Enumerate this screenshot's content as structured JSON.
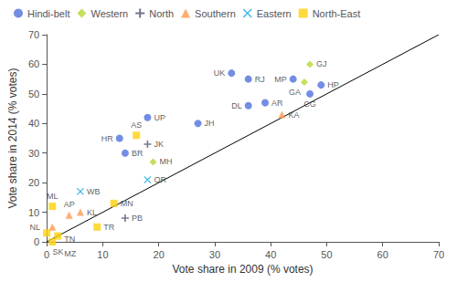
{
  "chart_data": {
    "type": "scatter",
    "xlabel": "Vote share in 2009 (% votes)",
    "ylabel": "Vote share in 2014 (% votes)",
    "xlim": [
      0,
      70
    ],
    "ylim": [
      0,
      70
    ],
    "xticks": [
      0,
      10,
      20,
      30,
      40,
      50,
      60,
      70
    ],
    "yticks": [
      0,
      10,
      20,
      30,
      40,
      50,
      60,
      70
    ],
    "grid": false,
    "legend": "upper left",
    "series": [
      {
        "type": "line",
        "color": "#000000",
        "x": [
          0,
          70
        ],
        "y": [
          0,
          70
        ]
      },
      {
        "name": "Hindi-belt",
        "marker": "circle",
        "labels": [
          "UK",
          "RJ",
          "MP",
          "HP",
          "CG",
          "AR",
          "DL",
          "UP",
          "JH",
          "HR",
          "BR"
        ],
        "x": [
          33,
          36,
          44,
          49,
          47,
          39,
          36,
          18,
          27,
          13,
          14
        ],
        "y": [
          57,
          55,
          55,
          53,
          50,
          47,
          46,
          42,
          40,
          35,
          30
        ]
      },
      {
        "name": "Western",
        "marker": "diamond",
        "labels": [
          "GA",
          "GJ",
          "MH"
        ],
        "x": [
          46,
          47,
          19
        ],
        "y": [
          54,
          60,
          27
        ]
      },
      {
        "name": "North",
        "marker": "plus",
        "labels": [
          "JK",
          "PB"
        ],
        "x": [
          18,
          14
        ],
        "y": [
          33,
          8
        ]
      },
      {
        "name": "Southern",
        "marker": "triangle",
        "labels": [
          "KA",
          "AP",
          "KL",
          "TN"
        ],
        "x": [
          42,
          4,
          6,
          1
        ],
        "y": [
          43,
          9,
          10,
          5
        ]
      },
      {
        "name": "Eastern",
        "marker": "x",
        "labels": [
          "OR",
          "WB"
        ],
        "x": [
          18,
          6
        ],
        "y": [
          21,
          17
        ]
      },
      {
        "name": "North-East",
        "marker": "square",
        "labels": [
          "AS",
          "MN",
          "ML",
          "TR",
          "SK",
          "NL",
          "MZ"
        ],
        "x": [
          16,
          12,
          1,
          9,
          2,
          0,
          1
        ],
        "y": [
          36,
          13,
          12,
          5,
          2,
          3,
          0
        ]
      }
    ]
  }
}
